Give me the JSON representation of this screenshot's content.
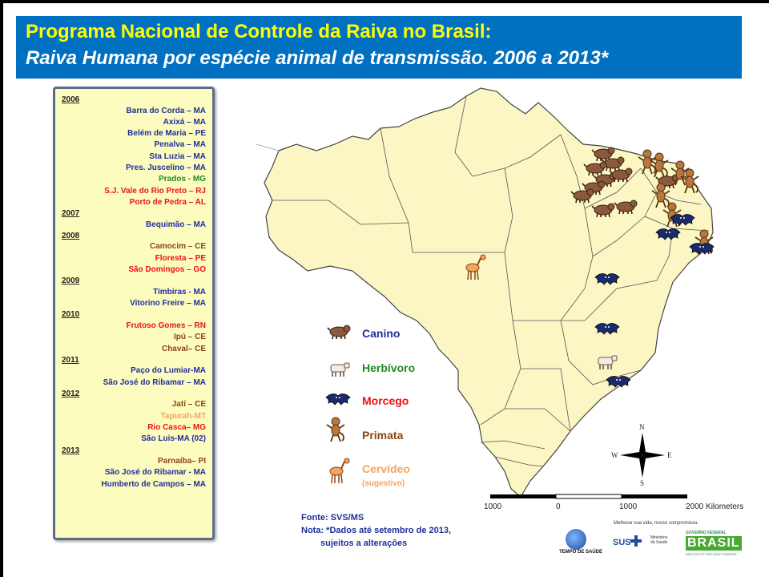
{
  "title": {
    "line1": "Programa Nacional de Controle da Raiva no Brasil:",
    "line2": "Raiva Humana por espécie animal de transmissão. 2006 a 2013*"
  },
  "colors": {
    "title_bar": "#0070c0",
    "title_line1": "#ffff00",
    "title_line2": "#ffffff",
    "canino": "#1f2f9c",
    "herbivoro": "#228b22",
    "morcego": "#ee1111",
    "primata": "#8b4513",
    "cervideo": "#f4a460"
  },
  "list": [
    {
      "year": "2006",
      "locations": [
        {
          "name": "Barra do Corda – MA",
          "species": "canino"
        },
        {
          "name": "Axixá – MA",
          "species": "canino"
        },
        {
          "name": "Belém de Maria – PE",
          "species": "canino"
        },
        {
          "name": "Penalva – MA",
          "species": "canino"
        },
        {
          "name": "Sta Luzia – MA",
          "species": "canino"
        },
        {
          "name": "Pres. Juscelino – MA",
          "species": "canino"
        },
        {
          "name": "Prados  - MG",
          "species": "herbivoro"
        },
        {
          "name": "S.J. Vale do Rio Preto – RJ",
          "species": "morcego"
        },
        {
          "name": "Porto de Pedra – AL",
          "species": "morcego"
        }
      ]
    },
    {
      "year": "2007",
      "locations": [
        {
          "name": "Bequimão – MA",
          "species": "canino"
        }
      ]
    },
    {
      "year": "2008",
      "locations": [
        {
          "name": "Camocim – CE",
          "species": "primata"
        },
        {
          "name": "Floresta – PE",
          "species": "morcego"
        },
        {
          "name": "São Domingos – GO",
          "species": "morcego"
        }
      ]
    },
    {
      "year": "2009",
      "locations": [
        {
          "name": "Timbiras - MA",
          "species": "canino"
        },
        {
          "name": "Vitorino Freire – MA",
          "species": "canino"
        }
      ]
    },
    {
      "year": "2010",
      "locations": [
        {
          "name": "Frutoso Gomes – RN",
          "species": "morcego"
        },
        {
          "name": "Ipú – CE",
          "species": "primata"
        },
        {
          "name": "Chaval– CE",
          "species": "primata"
        }
      ]
    },
    {
      "year": "2011",
      "locations": [
        {
          "name": "Paço do Lumiar-MA",
          "species": "canino"
        },
        {
          "name": "São José do Ribamar – MA",
          "species": "canino"
        }
      ]
    },
    {
      "year": "2012",
      "locations": [
        {
          "name": "Jatí – CE",
          "species": "primata"
        },
        {
          "name": "Tapurah-MT",
          "species": "cervideo"
        },
        {
          "name": "Rio Casca– MG",
          "species": "morcego"
        },
        {
          "name": "São Luis-MA (02)",
          "species": "canino"
        }
      ]
    },
    {
      "year": "2013",
      "locations": [
        {
          "name": "Parnaíba– PI",
          "species": "primata"
        },
        {
          "name": "São José do Ribamar - MA",
          "species": "canino"
        },
        {
          "name": "Humberto de Campos – MA",
          "species": "canino"
        }
      ]
    }
  ],
  "legend": {
    "canino": "Canino",
    "herbivoro": "Herbívoro",
    "morcego": "Morcego",
    "primata": "Primata",
    "cervideo": "Cervídeo",
    "cervideo_note": "(sugestivo)"
  },
  "notes": {
    "fonte": "Fonte: SVS/MS",
    "nota1": "Nota: *Dados até setembro de 2013,",
    "nota2": "sujeitos a alterações"
  },
  "scale": {
    "labels": [
      "1000",
      "0",
      "1000",
      "2000 Kilometers"
    ]
  },
  "compass": {
    "n": "N",
    "s": "S",
    "e": "E",
    "w": "W"
  },
  "footer": {
    "tagline": "Melhorar sua vida, nosso compromisso.",
    "tempo": "TEMPO DE SAÚDE",
    "sus": "SUS",
    "ministerio": "Ministério da Saúde",
    "governo": "GOVERNO FEDERAL",
    "brasil": "BRASIL",
    "brasil_sub": "PAÍS RICO É PAÍS SEM POBREZA"
  }
}
